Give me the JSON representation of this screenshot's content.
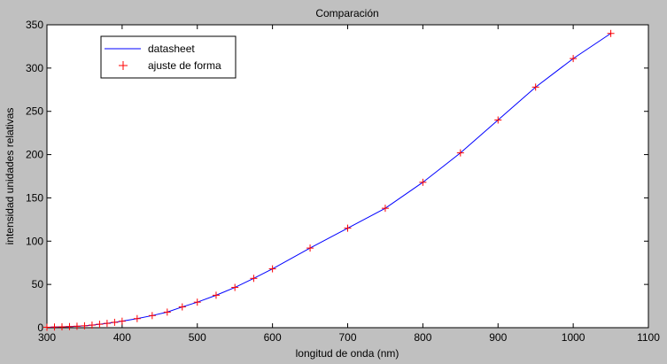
{
  "chart_data": {
    "type": "line",
    "title": "Comparación",
    "xlabel": "longitud de onda (nm)",
    "ylabel": "intensidad unidades relativas",
    "xlim": [
      300,
      1100
    ],
    "ylim": [
      0,
      350
    ],
    "xticks": [
      300,
      400,
      500,
      600,
      700,
      800,
      900,
      1000,
      1100
    ],
    "yticks": [
      0,
      50,
      100,
      150,
      200,
      250,
      300,
      350
    ],
    "grid": false,
    "legend_position": "top-left",
    "colors": {
      "background": "#c0c0c0",
      "plot_area": "#ffffff",
      "datasheet": "#0000ff",
      "fit": "#ff0000"
    },
    "series": [
      {
        "name": "datasheet",
        "style": "line",
        "x": [
          300,
          310,
          320,
          330,
          340,
          350,
          360,
          370,
          380,
          390,
          400,
          420,
          440,
          460,
          480,
          500,
          525,
          550,
          575,
          600,
          650,
          700,
          750,
          800,
          850,
          900,
          950,
          1000,
          1050
        ],
        "y": [
          0.5,
          0.8,
          1.0,
          1.3,
          1.7,
          2.2,
          3.0,
          4.0,
          5.0,
          6.2,
          7.5,
          10.5,
          14.0,
          18.0,
          24.0,
          29.5,
          37.5,
          46.5,
          57.0,
          68.0,
          92.0,
          115.0,
          138.0,
          168.0,
          202.0,
          240.0,
          278.0,
          311.0,
          340.0
        ]
      },
      {
        "name": "ajuste de forma",
        "style": "marker",
        "marker": "plus",
        "x": [
          300,
          310,
          320,
          330,
          340,
          350,
          360,
          370,
          380,
          390,
          400,
          420,
          440,
          460,
          480,
          500,
          525,
          550,
          575,
          600,
          650,
          700,
          750,
          800,
          850,
          900,
          950,
          1000,
          1050
        ],
        "y": [
          0.5,
          0.8,
          1.0,
          1.3,
          1.7,
          2.2,
          3.0,
          4.0,
          5.0,
          6.2,
          7.5,
          10.5,
          14.0,
          18.0,
          24.0,
          29.5,
          37.5,
          46.5,
          57.0,
          68.0,
          92.0,
          115.0,
          138.0,
          168.0,
          202.0,
          240.0,
          278.0,
          311.0,
          340.0
        ]
      }
    ]
  }
}
